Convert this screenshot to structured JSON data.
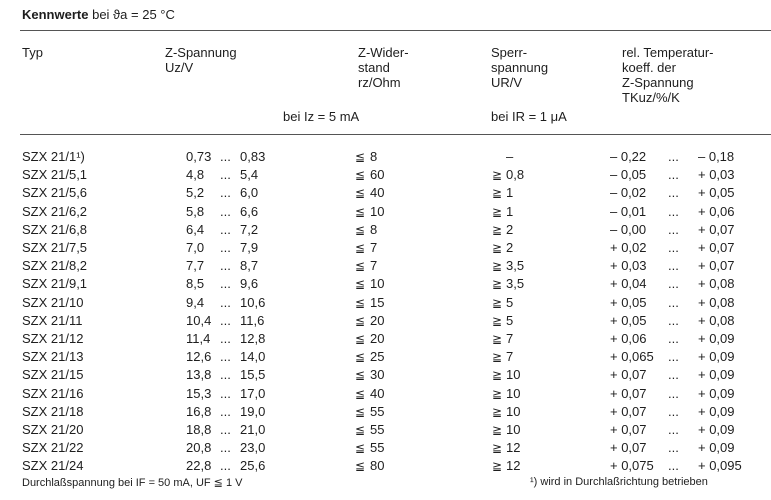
{
  "title": {
    "bold": "Kennwerte",
    "rest": "bei ϑa = 25 °C"
  },
  "headers": {
    "typ": "Typ",
    "uz": [
      "Z-Spannung",
      "Uz/V"
    ],
    "rz": [
      "Z-Wider-",
      "stand",
      "rz/Ohm"
    ],
    "ur": [
      "Sperr-",
      "spannung",
      "UR/V"
    ],
    "tk": [
      "rel. Temperatur-",
      "koeff. der",
      "Z-Spannung",
      "TKuz/%/K"
    ],
    "cond_iz": "bei Iz = 5 mA",
    "cond_ir": "bei IR = 1 μA"
  },
  "le": "≦",
  "ge": "≧",
  "dots": "...",
  "rows": [
    {
      "typ": "SZX 21/1¹)",
      "uz_min": "0,73",
      "uz_max": "0,83",
      "rz": "8",
      "ur": "–",
      "tk_min": "– 0,22",
      "tk_max": "– 0,18"
    },
    {
      "typ": "SZX 21/5,1",
      "uz_min": "4,8",
      "uz_max": "5,4",
      "rz": "60",
      "ur": "0,8",
      "tk_min": "– 0,05",
      "tk_max": "+ 0,03"
    },
    {
      "typ": "SZX 21/5,6",
      "uz_min": "5,2",
      "uz_max": "6,0",
      "rz": "40",
      "ur": "1",
      "tk_min": "– 0,02",
      "tk_max": "+ 0,05"
    },
    {
      "typ": "SZX 21/6,2",
      "uz_min": "5,8",
      "uz_max": "6,6",
      "rz": "10",
      "ur": "1",
      "tk_min": "– 0,01",
      "tk_max": "+ 0,06"
    },
    {
      "typ": "SZX 21/6,8",
      "uz_min": "6,4",
      "uz_max": "7,2",
      "rz": "8",
      "ur": "2",
      "tk_min": "– 0,00",
      "tk_max": "+ 0,07"
    },
    {
      "typ": "SZX 21/7,5",
      "uz_min": "7,0",
      "uz_max": "7,9",
      "rz": "7",
      "ur": "2",
      "tk_min": "+ 0,02",
      "tk_max": "+ 0,07"
    },
    {
      "typ": "SZX 21/8,2",
      "uz_min": "7,7",
      "uz_max": "8,7",
      "rz": "7",
      "ur": "3,5",
      "tk_min": "+ 0,03",
      "tk_max": "+ 0,07"
    },
    {
      "typ": "SZX 21/9,1",
      "uz_min": "8,5",
      "uz_max": "9,6",
      "rz": "10",
      "ur": "3,5",
      "tk_min": "+ 0,04",
      "tk_max": "+ 0,08"
    },
    {
      "typ": "SZX 21/10",
      "uz_min": "9,4",
      "uz_max": "10,6",
      "rz": "15",
      "ur": "5",
      "tk_min": "+ 0,05",
      "tk_max": "+ 0,08"
    },
    {
      "typ": "SZX 21/11",
      "uz_min": "10,4",
      "uz_max": "11,6",
      "rz": "20",
      "ur": "5",
      "tk_min": "+ 0,05",
      "tk_max": "+ 0,08"
    },
    {
      "typ": "SZX 21/12",
      "uz_min": "11,4",
      "uz_max": "12,8",
      "rz": "20",
      "ur": "7",
      "tk_min": "+ 0,06",
      "tk_max": "+ 0,09"
    },
    {
      "typ": "SZX 21/13",
      "uz_min": "12,6",
      "uz_max": "14,0",
      "rz": "25",
      "ur": "7",
      "tk_min": "+ 0,065",
      "tk_max": "+ 0,09"
    },
    {
      "typ": "SZX 21/15",
      "uz_min": "13,8",
      "uz_max": "15,5",
      "rz": "30",
      "ur": "10",
      "tk_min": "+ 0,07",
      "tk_max": "+ 0,09"
    },
    {
      "typ": "SZX 21/16",
      "uz_min": "15,3",
      "uz_max": "17,0",
      "rz": "40",
      "ur": "10",
      "tk_min": "+ 0,07",
      "tk_max": "+ 0,09"
    },
    {
      "typ": "SZX 21/18",
      "uz_min": "16,8",
      "uz_max": "19,0",
      "rz": "55",
      "ur": "10",
      "tk_min": "+ 0,07",
      "tk_max": "+ 0,09"
    },
    {
      "typ": "SZX 21/20",
      "uz_min": "18,8",
      "uz_max": "21,0",
      "rz": "55",
      "ur": "10",
      "tk_min": "+ 0,07",
      "tk_max": "+ 0,09"
    },
    {
      "typ": "SZX 21/22",
      "uz_min": "20,8",
      "uz_max": "23,0",
      "rz": "55",
      "ur": "12",
      "tk_min": "+ 0,07",
      "tk_max": "+ 0,09"
    },
    {
      "typ": "SZX 21/24",
      "uz_min": "22,8",
      "uz_max": "25,6",
      "rz": "80",
      "ur": "12",
      "tk_min": "+ 0,075",
      "tk_max": "+ 0,095"
    }
  ],
  "footer": {
    "left": "Durchlaßspannung bei IF = 50 mA, UF ≦ 1 V",
    "right": "¹) wird in Durchlaßrichtung betrieben"
  }
}
